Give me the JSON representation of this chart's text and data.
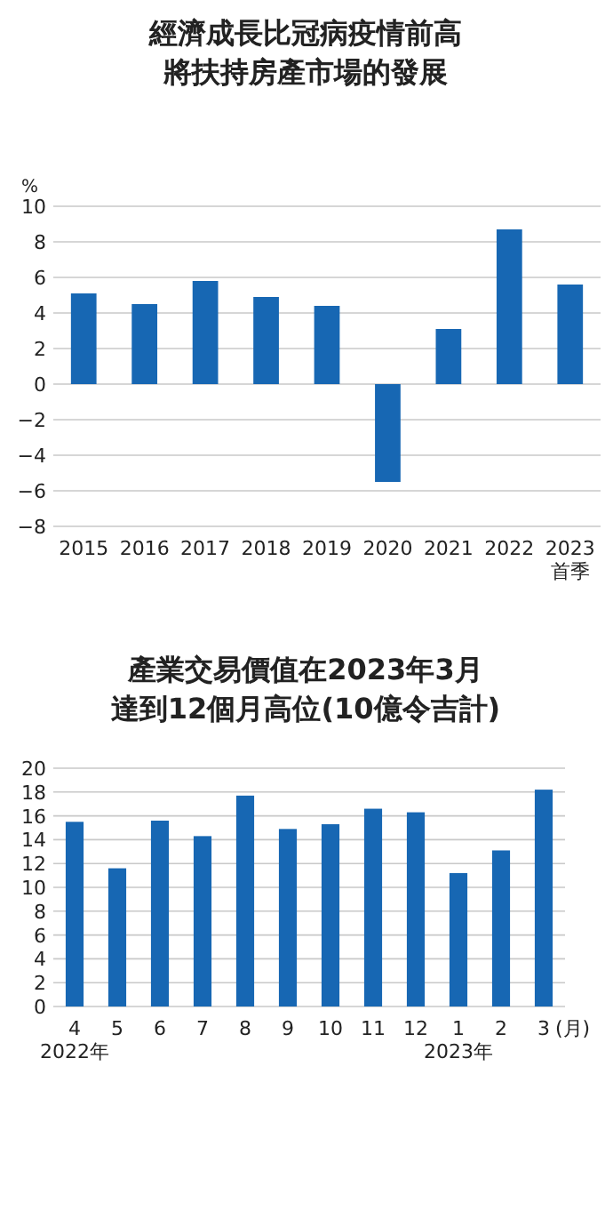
{
  "chart_data": [
    {
      "type": "bar",
      "title": "經濟成長比冠病疫情前高將扶持房產市場的發展",
      "ylabel": "%",
      "categories": [
        "2015",
        "2016",
        "2017",
        "2018",
        "2019",
        "2020",
        "2021",
        "2022",
        "2023\n首季"
      ],
      "values": [
        5.1,
        4.5,
        5.8,
        4.9,
        4.4,
        -5.5,
        3.1,
        8.7,
        5.6
      ],
      "color": "#1767b3",
      "ylim": [
        -8,
        10
      ],
      "yticks": [
        -8,
        -6,
        -4,
        -2,
        0,
        2,
        4,
        6,
        8,
        10
      ],
      "grid": "y"
    },
    {
      "type": "bar",
      "title": "產業交易價值在2023年3月達到12個月高位(10億令吉計)",
      "xlabel": "(月)",
      "categories": [
        "4\n2022年",
        "5",
        "6",
        "7",
        "8",
        "9",
        "10",
        "11",
        "12",
        "1\n2023年",
        "2",
        "3"
      ],
      "values": [
        15.5,
        11.6,
        15.6,
        14.3,
        17.7,
        14.9,
        15.3,
        16.6,
        16.3,
        11.2,
        13.1,
        18.2
      ],
      "color": "#1767b3",
      "ylim": [
        0,
        20
      ],
      "yticks": [
        0,
        2,
        4,
        6,
        8,
        10,
        12,
        14,
        16,
        18,
        20
      ],
      "grid": "y"
    }
  ]
}
